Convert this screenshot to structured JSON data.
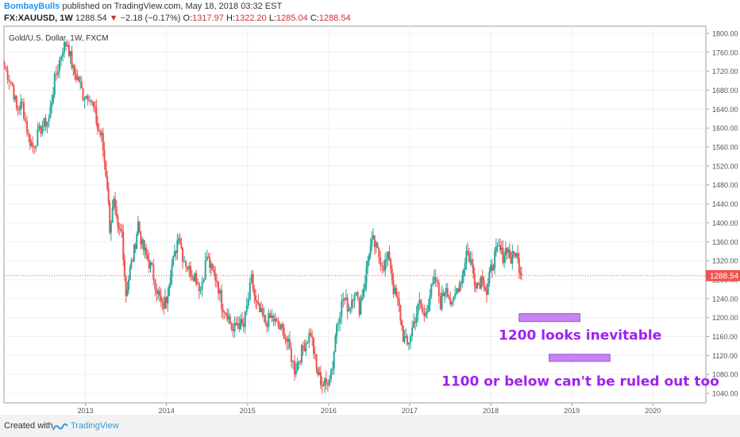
{
  "header": {
    "user": "BombayBulls",
    "published_text": "published on TradingView.com, May 18, 2018 03:32 EST",
    "symbol": "FX:XAUUSD, 1W",
    "last": "1288.54",
    "change_arrow": "▼",
    "change": "−2.18 (−0.17%)",
    "o_label": "O:",
    "o_value": "1317.97",
    "h_label": "H:",
    "h_value": "1322.20",
    "l_label": "L:",
    "l_value": "1285.04",
    "c_label": "C:",
    "c_value": "1288.54"
  },
  "chart_data": {
    "type": "candlestick",
    "title": "Gold/U.S. Dollar, 1W, FXCM",
    "y_ticks": [
      1800,
      1760,
      1720,
      1680,
      1640,
      1600,
      1560,
      1520,
      1480,
      1440,
      1400,
      1360,
      1320,
      1280,
      1240,
      1200,
      1160,
      1120,
      1080,
      1040
    ],
    "x_ticks": [
      "2013",
      "2014",
      "2015",
      "2016",
      "2017",
      "2018",
      "2019",
      "2020"
    ],
    "ylim": [
      1020,
      1815
    ],
    "last_price": 1288.54,
    "last_price_label": "1288.54",
    "up_color": "#26a69a",
    "down_color": "#ef5350",
    "annotation_color": "#a020f0",
    "series": [
      {
        "t": 2012.0,
        "c": 1730
      },
      {
        "t": 2012.1,
        "c": 1690
      },
      {
        "t": 2012.15,
        "c": 1640
      },
      {
        "t": 2012.22,
        "c": 1650
      },
      {
        "t": 2012.3,
        "c": 1580
      },
      {
        "t": 2012.35,
        "c": 1560
      },
      {
        "t": 2012.45,
        "c": 1600
      },
      {
        "t": 2012.55,
        "c": 1620
      },
      {
        "t": 2012.62,
        "c": 1700
      },
      {
        "t": 2012.72,
        "c": 1770
      },
      {
        "t": 2012.78,
        "c": 1780
      },
      {
        "t": 2012.85,
        "c": 1720
      },
      {
        "t": 2012.92,
        "c": 1700
      },
      {
        "t": 2012.97,
        "c": 1670
      },
      {
        "t": 2013.05,
        "c": 1670
      },
      {
        "t": 2013.12,
        "c": 1630
      },
      {
        "t": 2013.15,
        "c": 1600
      },
      {
        "t": 2013.2,
        "c": 1580
      },
      {
        "t": 2013.27,
        "c": 1480
      },
      {
        "t": 2013.3,
        "c": 1390
      },
      {
        "t": 2013.35,
        "c": 1440
      },
      {
        "t": 2013.4,
        "c": 1380
      },
      {
        "t": 2013.45,
        "c": 1380
      },
      {
        "t": 2013.5,
        "c": 1250
      },
      {
        "t": 2013.55,
        "c": 1300
      },
      {
        "t": 2013.6,
        "c": 1340
      },
      {
        "t": 2013.65,
        "c": 1400
      },
      {
        "t": 2013.7,
        "c": 1350
      },
      {
        "t": 2013.75,
        "c": 1330
      },
      {
        "t": 2013.82,
        "c": 1300
      },
      {
        "t": 2013.88,
        "c": 1260
      },
      {
        "t": 2013.95,
        "c": 1220
      },
      {
        "t": 2014.0,
        "c": 1240
      },
      {
        "t": 2014.05,
        "c": 1300
      },
      {
        "t": 2014.1,
        "c": 1330
      },
      {
        "t": 2014.15,
        "c": 1380
      },
      {
        "t": 2014.2,
        "c": 1330
      },
      {
        "t": 2014.28,
        "c": 1300
      },
      {
        "t": 2014.35,
        "c": 1290
      },
      {
        "t": 2014.42,
        "c": 1260
      },
      {
        "t": 2014.5,
        "c": 1330
      },
      {
        "t": 2014.55,
        "c": 1300
      },
      {
        "t": 2014.62,
        "c": 1280
      },
      {
        "t": 2014.68,
        "c": 1230
      },
      {
        "t": 2014.75,
        "c": 1210
      },
      {
        "t": 2014.82,
        "c": 1170
      },
      {
        "t": 2014.88,
        "c": 1190
      },
      {
        "t": 2014.95,
        "c": 1180
      },
      {
        "t": 2015.05,
        "c": 1280
      },
      {
        "t": 2015.1,
        "c": 1230
      },
      {
        "t": 2015.15,
        "c": 1210
      },
      {
        "t": 2015.22,
        "c": 1190
      },
      {
        "t": 2015.3,
        "c": 1200
      },
      {
        "t": 2015.38,
        "c": 1180
      },
      {
        "t": 2015.45,
        "c": 1170
      },
      {
        "t": 2015.52,
        "c": 1130
      },
      {
        "t": 2015.58,
        "c": 1090
      },
      {
        "t": 2015.65,
        "c": 1120
      },
      {
        "t": 2015.72,
        "c": 1150
      },
      {
        "t": 2015.78,
        "c": 1170
      },
      {
        "t": 2015.85,
        "c": 1090
      },
      {
        "t": 2015.92,
        "c": 1060
      },
      {
        "t": 2015.97,
        "c": 1060
      },
      {
        "t": 2016.05,
        "c": 1100
      },
      {
        "t": 2016.1,
        "c": 1190
      },
      {
        "t": 2016.18,
        "c": 1240
      },
      {
        "t": 2016.25,
        "c": 1220
      },
      {
        "t": 2016.32,
        "c": 1260
      },
      {
        "t": 2016.38,
        "c": 1220
      },
      {
        "t": 2016.45,
        "c": 1280
      },
      {
        "t": 2016.5,
        "c": 1340
      },
      {
        "t": 2016.55,
        "c": 1360
      },
      {
        "t": 2016.62,
        "c": 1330
      },
      {
        "t": 2016.68,
        "c": 1310
      },
      {
        "t": 2016.75,
        "c": 1330
      },
      {
        "t": 2016.8,
        "c": 1260
      },
      {
        "t": 2016.87,
        "c": 1220
      },
      {
        "t": 2016.92,
        "c": 1160
      },
      {
        "t": 2016.97,
        "c": 1140
      },
      {
        "t": 2017.05,
        "c": 1190
      },
      {
        "t": 2017.12,
        "c": 1230
      },
      {
        "t": 2017.18,
        "c": 1200
      },
      {
        "t": 2017.25,
        "c": 1250
      },
      {
        "t": 2017.32,
        "c": 1280
      },
      {
        "t": 2017.38,
        "c": 1230
      },
      {
        "t": 2017.45,
        "c": 1270
      },
      {
        "t": 2017.52,
        "c": 1220
      },
      {
        "t": 2017.58,
        "c": 1260
      },
      {
        "t": 2017.65,
        "c": 1290
      },
      {
        "t": 2017.7,
        "c": 1340
      },
      {
        "t": 2017.75,
        "c": 1320
      },
      {
        "t": 2017.8,
        "c": 1280
      },
      {
        "t": 2017.85,
        "c": 1270
      },
      {
        "t": 2017.9,
        "c": 1290
      },
      {
        "t": 2017.95,
        "c": 1250
      },
      {
        "t": 2018.0,
        "c": 1300
      },
      {
        "t": 2018.05,
        "c": 1330
      },
      {
        "t": 2018.1,
        "c": 1345
      },
      {
        "t": 2018.15,
        "c": 1330
      },
      {
        "t": 2018.2,
        "c": 1350
      },
      {
        "t": 2018.25,
        "c": 1320
      },
      {
        "t": 2018.3,
        "c": 1340
      },
      {
        "t": 2018.35,
        "c": 1310
      },
      {
        "t": 2018.38,
        "c": 1288.54
      }
    ],
    "annotations": [
      {
        "text": "1200 looks inevitable",
        "x_start": 2018.35,
        "x_end": 2019.1,
        "y": 1200
      },
      {
        "text": "1100 or below can't be ruled out too",
        "x_start": 2018.72,
        "x_end": 2019.47,
        "y": 1115
      }
    ]
  },
  "footer": {
    "created": "Created with",
    "brand": "TradingView"
  }
}
